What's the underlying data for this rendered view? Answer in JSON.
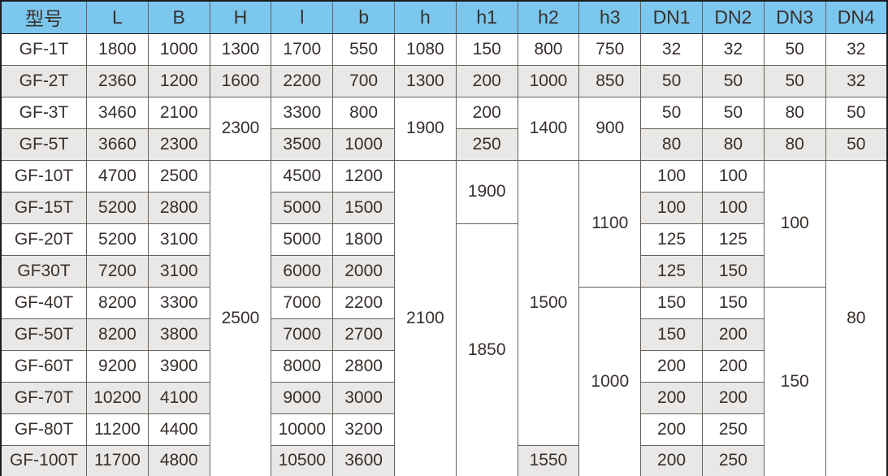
{
  "colors": {
    "header_bg": "#7cc7ee",
    "alt_row_bg": "#e9e8e6",
    "white_bg": "#ffffff",
    "text_color": "#38302c",
    "inner_border": "#66615c",
    "outer_border": "#1c1c1c"
  },
  "table": {
    "headers": [
      "型号",
      "L",
      "B",
      "H",
      "l",
      "b",
      "h",
      "h1",
      "h2",
      "h3",
      "DN1",
      "DN2",
      "DN3",
      "DN4"
    ],
    "rows": [
      [
        {
          "v": "GF-1T"
        },
        {
          "v": "1800"
        },
        {
          "v": "1000"
        },
        {
          "v": "1300"
        },
        {
          "v": "1700"
        },
        {
          "v": "550"
        },
        {
          "v": "1080"
        },
        {
          "v": "150"
        },
        {
          "v": "800"
        },
        {
          "v": "750"
        },
        {
          "v": "32"
        },
        {
          "v": "32"
        },
        {
          "v": "50"
        },
        {
          "v": "32"
        }
      ],
      [
        {
          "v": "GF-2T"
        },
        {
          "v": "2360"
        },
        {
          "v": "1200"
        },
        {
          "v": "1600"
        },
        {
          "v": "2200"
        },
        {
          "v": "700"
        },
        {
          "v": "1300"
        },
        {
          "v": "200"
        },
        {
          "v": "1000"
        },
        {
          "v": "850"
        },
        {
          "v": "50"
        },
        {
          "v": "50"
        },
        {
          "v": "50"
        },
        {
          "v": "32"
        }
      ],
      [
        {
          "v": "GF-3T"
        },
        {
          "v": "3460"
        },
        {
          "v": "2100"
        },
        {
          "v": "2300",
          "rs": 2
        },
        {
          "v": "3300"
        },
        {
          "v": "800"
        },
        {
          "v": "1900",
          "rs": 2
        },
        {
          "v": "200"
        },
        {
          "v": "1400",
          "rs": 2
        },
        {
          "v": "900",
          "rs": 2
        },
        {
          "v": "50"
        },
        {
          "v": "50"
        },
        {
          "v": "80"
        },
        {
          "v": "50"
        }
      ],
      [
        {
          "v": "GF-5T"
        },
        {
          "v": "3660"
        },
        {
          "v": "2300"
        },
        null,
        {
          "v": "3500"
        },
        {
          "v": "1000"
        },
        null,
        {
          "v": "250"
        },
        null,
        null,
        {
          "v": "80"
        },
        {
          "v": "80"
        },
        {
          "v": "80"
        },
        {
          "v": "50"
        }
      ],
      [
        {
          "v": "GF-10T"
        },
        {
          "v": "4700"
        },
        {
          "v": "2500"
        },
        {
          "v": "2500",
          "rs": 10
        },
        {
          "v": "4500"
        },
        {
          "v": "1200"
        },
        {
          "v": "2100",
          "rs": 10
        },
        {
          "v": "1900",
          "rs": 2
        },
        {
          "v": "1500",
          "rs": 9
        },
        {
          "v": "1100",
          "rs": 4
        },
        {
          "v": "100"
        },
        {
          "v": "100"
        },
        {
          "v": "100",
          "rs": 4
        },
        {
          "v": "80",
          "rs": 10
        }
      ],
      [
        {
          "v": "GF-15T"
        },
        {
          "v": "5200"
        },
        {
          "v": "2800"
        },
        null,
        {
          "v": "5000"
        },
        {
          "v": "1500"
        },
        null,
        null,
        null,
        null,
        {
          "v": "100"
        },
        {
          "v": "100"
        },
        null,
        null
      ],
      [
        {
          "v": "GF-20T"
        },
        {
          "v": "5200"
        },
        {
          "v": "3100"
        },
        null,
        {
          "v": "5000"
        },
        {
          "v": "1800"
        },
        null,
        {
          "v": "1850",
          "rs": 8
        },
        null,
        null,
        {
          "v": "125"
        },
        {
          "v": "125"
        },
        null,
        null
      ],
      [
        {
          "v": "GF30T"
        },
        {
          "v": "7200"
        },
        {
          "v": "3100"
        },
        null,
        {
          "v": "6000"
        },
        {
          "v": "2000"
        },
        null,
        null,
        null,
        null,
        {
          "v": "125"
        },
        {
          "v": "150"
        },
        null,
        null
      ],
      [
        {
          "v": "GF-40T"
        },
        {
          "v": "8200"
        },
        {
          "v": "3300"
        },
        null,
        {
          "v": "7000"
        },
        {
          "v": "2200"
        },
        null,
        null,
        null,
        {
          "v": "1000",
          "rs": 6
        },
        {
          "v": "150"
        },
        {
          "v": "150"
        },
        {
          "v": "150",
          "rs": 6
        },
        null
      ],
      [
        {
          "v": "GF-50T"
        },
        {
          "v": "8200"
        },
        {
          "v": "3800"
        },
        null,
        {
          "v": "7000"
        },
        {
          "v": "2700"
        },
        null,
        null,
        null,
        null,
        {
          "v": "150"
        },
        {
          "v": "200"
        },
        null,
        null
      ],
      [
        {
          "v": "GF-60T"
        },
        {
          "v": "9200"
        },
        {
          "v": "3900"
        },
        null,
        {
          "v": "8000"
        },
        {
          "v": "2800"
        },
        null,
        null,
        null,
        null,
        {
          "v": "200"
        },
        {
          "v": "200"
        },
        null,
        null
      ],
      [
        {
          "v": "GF-70T"
        },
        {
          "v": "10200"
        },
        {
          "v": "4100"
        },
        null,
        {
          "v": "9000"
        },
        {
          "v": "3000"
        },
        null,
        null,
        null,
        null,
        {
          "v": "200"
        },
        {
          "v": "200"
        },
        null,
        null
      ],
      [
        {
          "v": "GF-80T"
        },
        {
          "v": "11200"
        },
        {
          "v": "4400"
        },
        null,
        {
          "v": "10000"
        },
        {
          "v": "3200"
        },
        null,
        null,
        null,
        null,
        {
          "v": "200"
        },
        {
          "v": "250"
        },
        null,
        null
      ],
      [
        {
          "v": "GF-100T"
        },
        {
          "v": "11700"
        },
        {
          "v": "4800"
        },
        null,
        {
          "v": "10500"
        },
        {
          "v": "3600"
        },
        null,
        null,
        {
          "v": "1550"
        },
        null,
        {
          "v": "200"
        },
        {
          "v": "250"
        },
        null,
        null
      ]
    ]
  }
}
